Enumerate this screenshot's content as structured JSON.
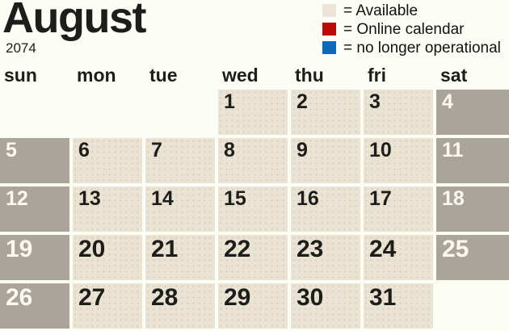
{
  "title": "August",
  "year": "2074",
  "legend": [
    {
      "name": "available",
      "color": "#ece4d6",
      "label": "= Available"
    },
    {
      "name": "online-calendar",
      "color": "#bf0a0a",
      "label": "= Online calendar"
    },
    {
      "name": "no-longer-operational",
      "color": "#0f67bb",
      "label": "= no longer operational"
    }
  ],
  "weekdays": [
    "sun",
    "mon",
    "tue",
    "wed",
    "thu",
    "fri",
    "sat"
  ],
  "colors": {
    "background": "#fcfdf5",
    "available_cell": "#eae3d4",
    "available_cell_dot": "#d6cab4",
    "weekend_cell": "#aba49b",
    "day_number_dark": "#1d1d1b",
    "day_number_light": "#fbf9f3"
  },
  "calendar": {
    "weeks": [
      [
        {
          "day": "",
          "state": "empty"
        },
        {
          "day": "",
          "state": "empty"
        },
        {
          "day": "",
          "state": "empty"
        },
        {
          "day": "1",
          "state": "available"
        },
        {
          "day": "2",
          "state": "available"
        },
        {
          "day": "3",
          "state": "available"
        },
        {
          "day": "4",
          "state": "weekend"
        }
      ],
      [
        {
          "day": "5",
          "state": "weekend"
        },
        {
          "day": "6",
          "state": "available"
        },
        {
          "day": "7",
          "state": "available"
        },
        {
          "day": "8",
          "state": "available"
        },
        {
          "day": "9",
          "state": "available"
        },
        {
          "day": "10",
          "state": "available"
        },
        {
          "day": "11",
          "state": "weekend"
        }
      ],
      [
        {
          "day": "12",
          "state": "weekend"
        },
        {
          "day": "13",
          "state": "available"
        },
        {
          "day": "14",
          "state": "available"
        },
        {
          "day": "15",
          "state": "available"
        },
        {
          "day": "16",
          "state": "available"
        },
        {
          "day": "17",
          "state": "available"
        },
        {
          "day": "18",
          "state": "weekend"
        }
      ],
      [
        {
          "day": "19",
          "state": "weekend"
        },
        {
          "day": "20",
          "state": "available"
        },
        {
          "day": "21",
          "state": "available"
        },
        {
          "day": "22",
          "state": "available"
        },
        {
          "day": "23",
          "state": "available"
        },
        {
          "day": "24",
          "state": "available"
        },
        {
          "day": "25",
          "state": "weekend"
        }
      ],
      [
        {
          "day": "26",
          "state": "weekend"
        },
        {
          "day": "27",
          "state": "available"
        },
        {
          "day": "28",
          "state": "available"
        },
        {
          "day": "29",
          "state": "available"
        },
        {
          "day": "30",
          "state": "available"
        },
        {
          "day": "31",
          "state": "available"
        },
        {
          "day": "",
          "state": "empty"
        }
      ]
    ]
  }
}
